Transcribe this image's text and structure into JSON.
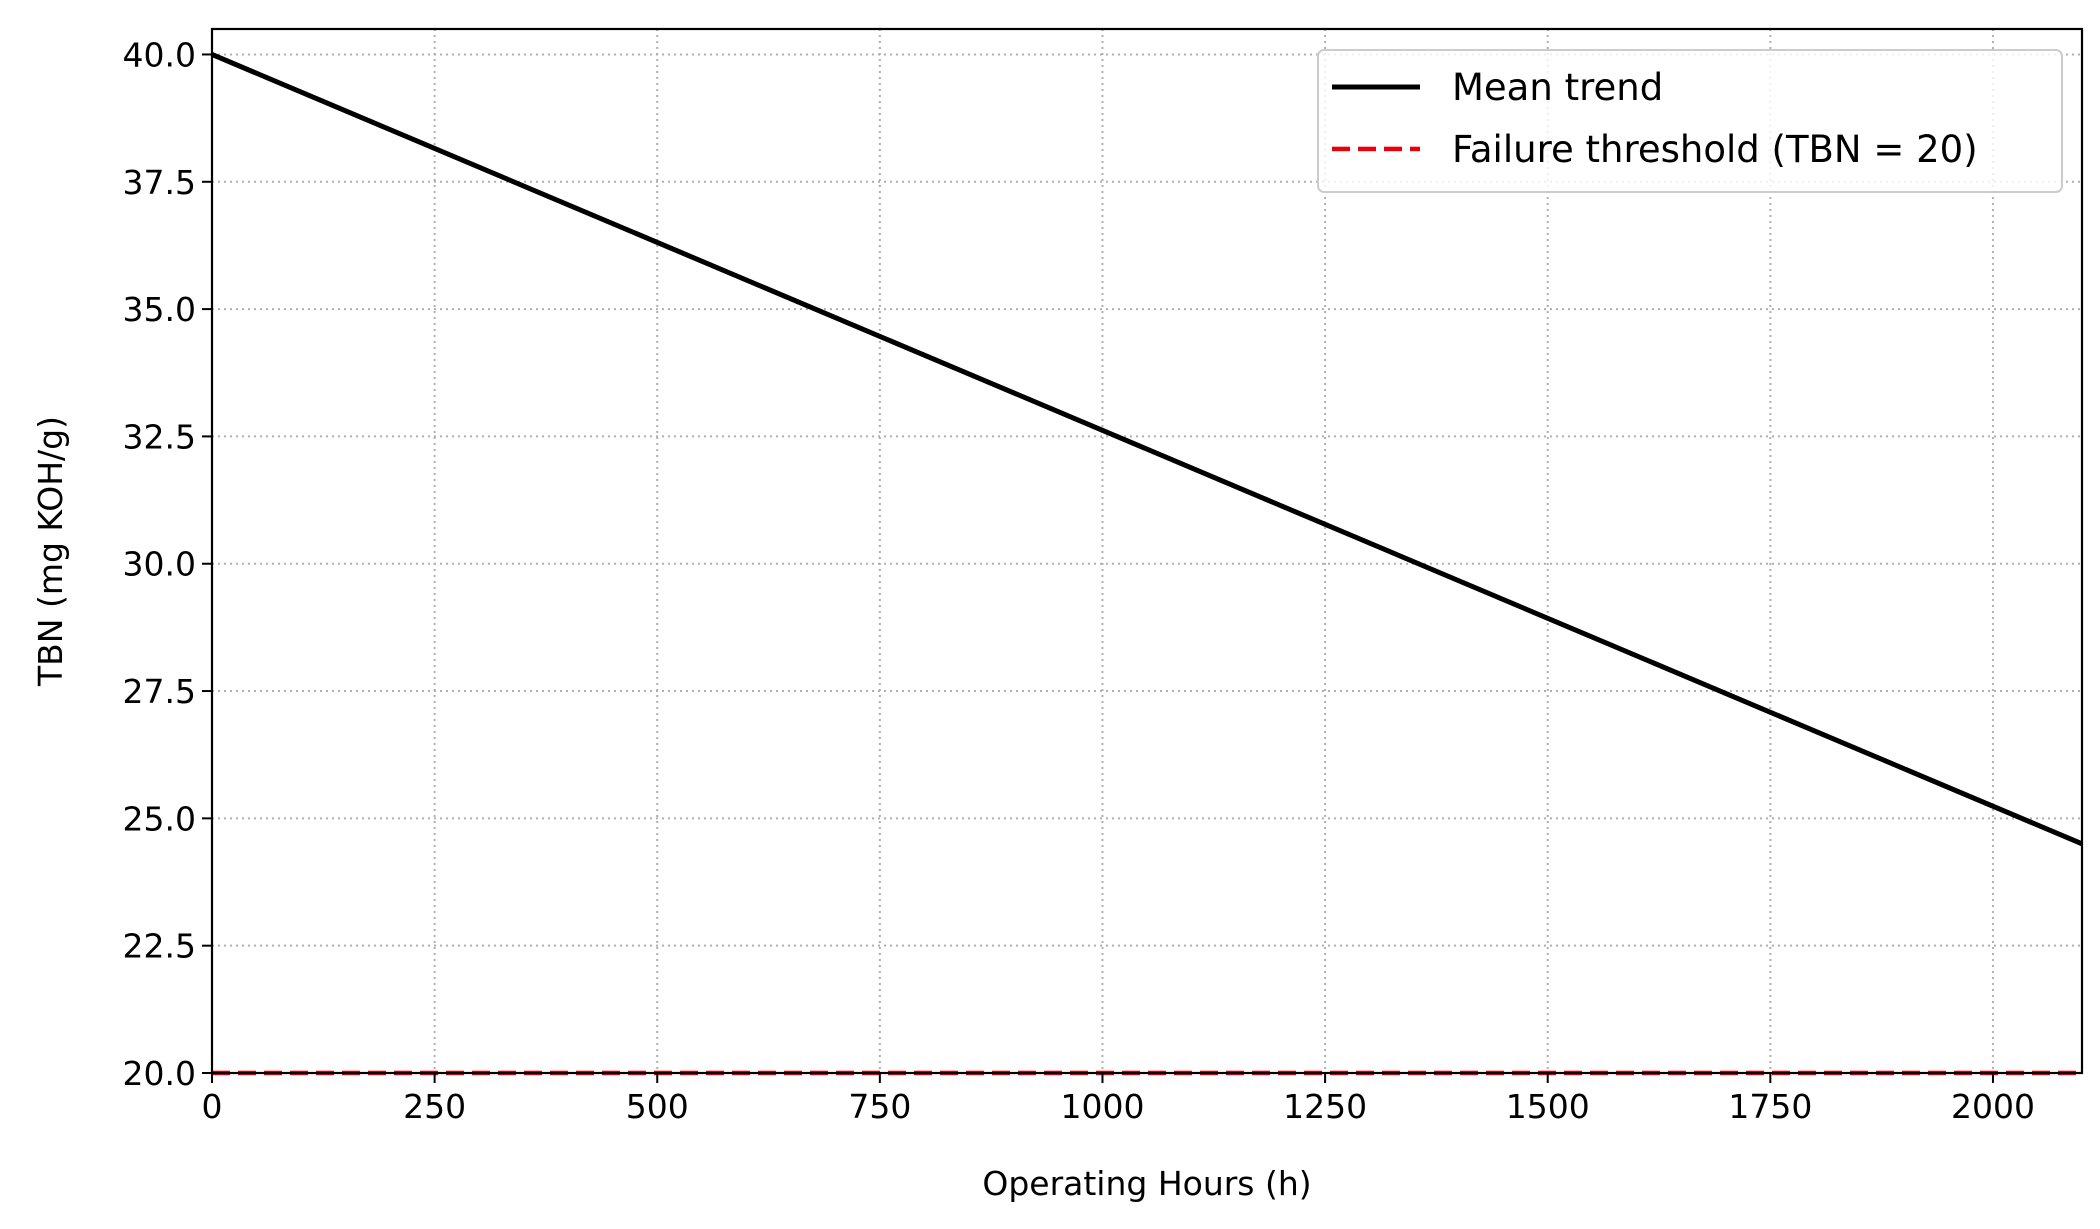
{
  "chart_data": {
    "type": "line",
    "title": "",
    "xlabel": "Operating Hours (h)",
    "ylabel": "TBN (mg KOH/g)",
    "xlim": [
      0,
      2100
    ],
    "ylim": [
      20.0,
      40.5
    ],
    "xticks": [
      0,
      250,
      500,
      750,
      1000,
      1250,
      1500,
      1750,
      2000
    ],
    "xtick_labels": [
      "0",
      "250",
      "500",
      "750",
      "1000",
      "1250",
      "1500",
      "1750",
      "2000"
    ],
    "yticks": [
      20.0,
      22.5,
      25.0,
      27.5,
      30.0,
      32.5,
      35.0,
      37.5,
      40.0
    ],
    "ytick_labels": [
      "20.0",
      "22.5",
      "25.0",
      "27.5",
      "30.0",
      "32.5",
      "35.0",
      "37.5",
      "40.0"
    ],
    "grid": true,
    "legend_position": "top-right",
    "series": [
      {
        "name": "Mean trend",
        "style": "solid",
        "color": "#000000",
        "x": [
          0,
          2100
        ],
        "y": [
          40.0,
          24.5
        ]
      },
      {
        "name": "Failure threshold (TBN = 20)",
        "style": "dashed",
        "color": "#e8000b",
        "x": [
          0,
          2100
        ],
        "y": [
          20.0,
          20.0
        ]
      }
    ]
  }
}
